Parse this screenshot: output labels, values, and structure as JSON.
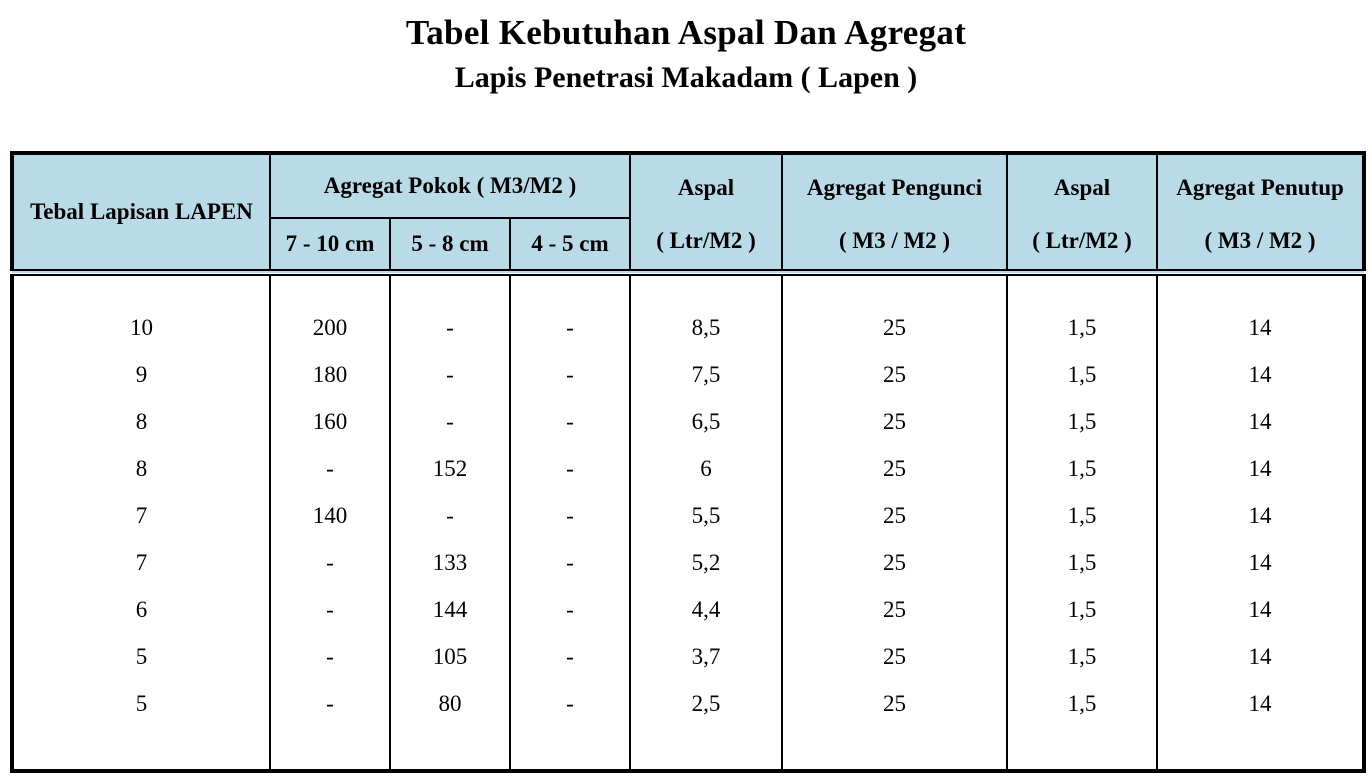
{
  "title": {
    "line1": "Tabel Kebutuhan Aspal Dan Agregat",
    "line2": "Lapis Penetrasi Makadam ( Lapen )"
  },
  "table": {
    "header": {
      "col_tebal": "Tebal Lapisan LAPEN",
      "agregat_pokok": "Agregat Pokok ( M3/M2 )",
      "sub_cols": [
        "7 - 10 cm",
        "5 - 8 cm",
        "4 - 5 cm"
      ],
      "aspal1_line1": "Aspal",
      "aspal1_line2": "( Ltr/M2 )",
      "pengunci_line1": "Agregat Pengunci",
      "pengunci_line2": "( M3 / M2 )",
      "aspal2_line1": "Aspal",
      "aspal2_line2": "( Ltr/M2 )",
      "penutup_line1": "Agregat Penutup",
      "penutup_line2": "( M3 / M2 )"
    },
    "rows": [
      [
        "10",
        "200",
        "-",
        "-",
        "8,5",
        "25",
        "1,5",
        "14"
      ],
      [
        "9",
        "180",
        "-",
        "-",
        "7,5",
        "25",
        "1,5",
        "14"
      ],
      [
        "8",
        "160",
        "-",
        "-",
        "6,5",
        "25",
        "1,5",
        "14"
      ],
      [
        "8",
        "-",
        "152",
        "-",
        "6",
        "25",
        "1,5",
        "14"
      ],
      [
        "7",
        "140",
        "-",
        "-",
        "5,5",
        "25",
        "1,5",
        "14"
      ],
      [
        "7",
        "-",
        "133",
        "-",
        "5,2",
        "25",
        "1,5",
        "14"
      ],
      [
        "6",
        "-",
        "144",
        "-",
        "4,4",
        "25",
        "1,5",
        "14"
      ],
      [
        "5",
        "-",
        "105",
        "-",
        "3,7",
        "25",
        "1,5",
        "14"
      ],
      [
        "5",
        "-",
        "80",
        "-",
        "2,5",
        "25",
        "1,5",
        "14"
      ]
    ],
    "colors": {
      "header_bg": "#b9dbe7",
      "border": "#000000",
      "text": "#000000",
      "page_bg": "#ffffff"
    }
  }
}
